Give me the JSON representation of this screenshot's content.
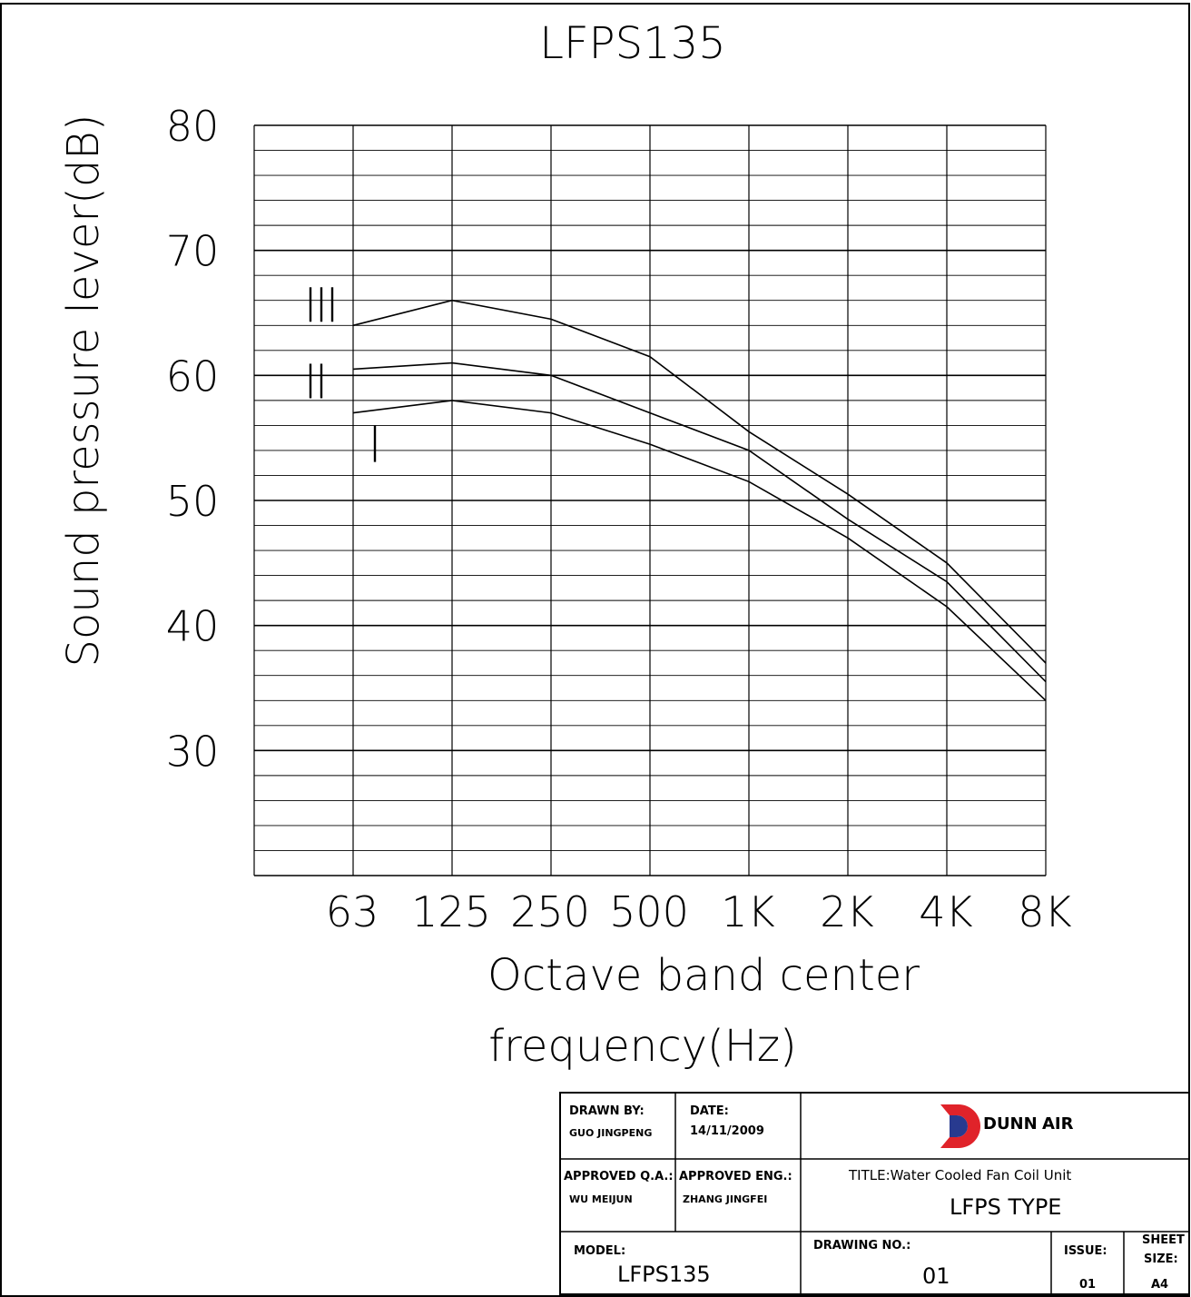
{
  "chart_data": {
    "type": "line",
    "title": "LFPS135",
    "xlabel_line1": "Octave band center",
    "xlabel_line2": "frequency(Hz)",
    "ylabel": "Sound pressure lever(dB)",
    "categories": [
      "63",
      "125",
      "250",
      "500",
      "1K",
      "2K",
      "4K",
      "8K"
    ],
    "yticks": [
      "80",
      "70",
      "60",
      "50",
      "40",
      "30"
    ],
    "ylim": [
      20,
      80
    ],
    "grid": true,
    "series": [
      {
        "name": "III",
        "values": [
          64,
          66,
          64.5,
          61.5,
          55.5,
          50.5,
          45,
          37
        ]
      },
      {
        "name": "II",
        "values": [
          60.5,
          61,
          60,
          57,
          54,
          48.5,
          43.5,
          35.5
        ]
      },
      {
        "name": "I",
        "values": [
          57,
          58,
          57,
          54.5,
          51.5,
          47,
          41.5,
          34
        ]
      }
    ]
  },
  "title_block": {
    "drawn_by_label": "DRAWN BY:",
    "drawn_by": "GUO JINGPENG",
    "date_label": "DATE:",
    "date": "14/11/2009",
    "brand_a": "DUNN",
    "brand_b": "AIR",
    "brand_color_a": "#3b2a86",
    "brand_color_b": "#7a6fc0",
    "logo_color_red": "#e0232a",
    "logo_color_blue": "#283a8f",
    "approved_qa_label": "APPROVED Q.A.:",
    "approved_qa": "WU MEIJUN",
    "approved_eng_label": "APPROVED ENG.:",
    "approved_eng": "ZHANG JINGFEI",
    "title_line": "TITLE:Water Cooled Fan Coil Unit",
    "type_line": "LFPS TYPE",
    "model_label": "MODEL:",
    "model": "LFPS135",
    "drawing_no_label": "DRAWING NO.:",
    "drawing_no": "01",
    "issue_label": "ISSUE:",
    "issue": "01",
    "sheet_size_label_1": "SHEET",
    "sheet_size_label_2": "SIZE:",
    "sheet_size": "A4"
  }
}
